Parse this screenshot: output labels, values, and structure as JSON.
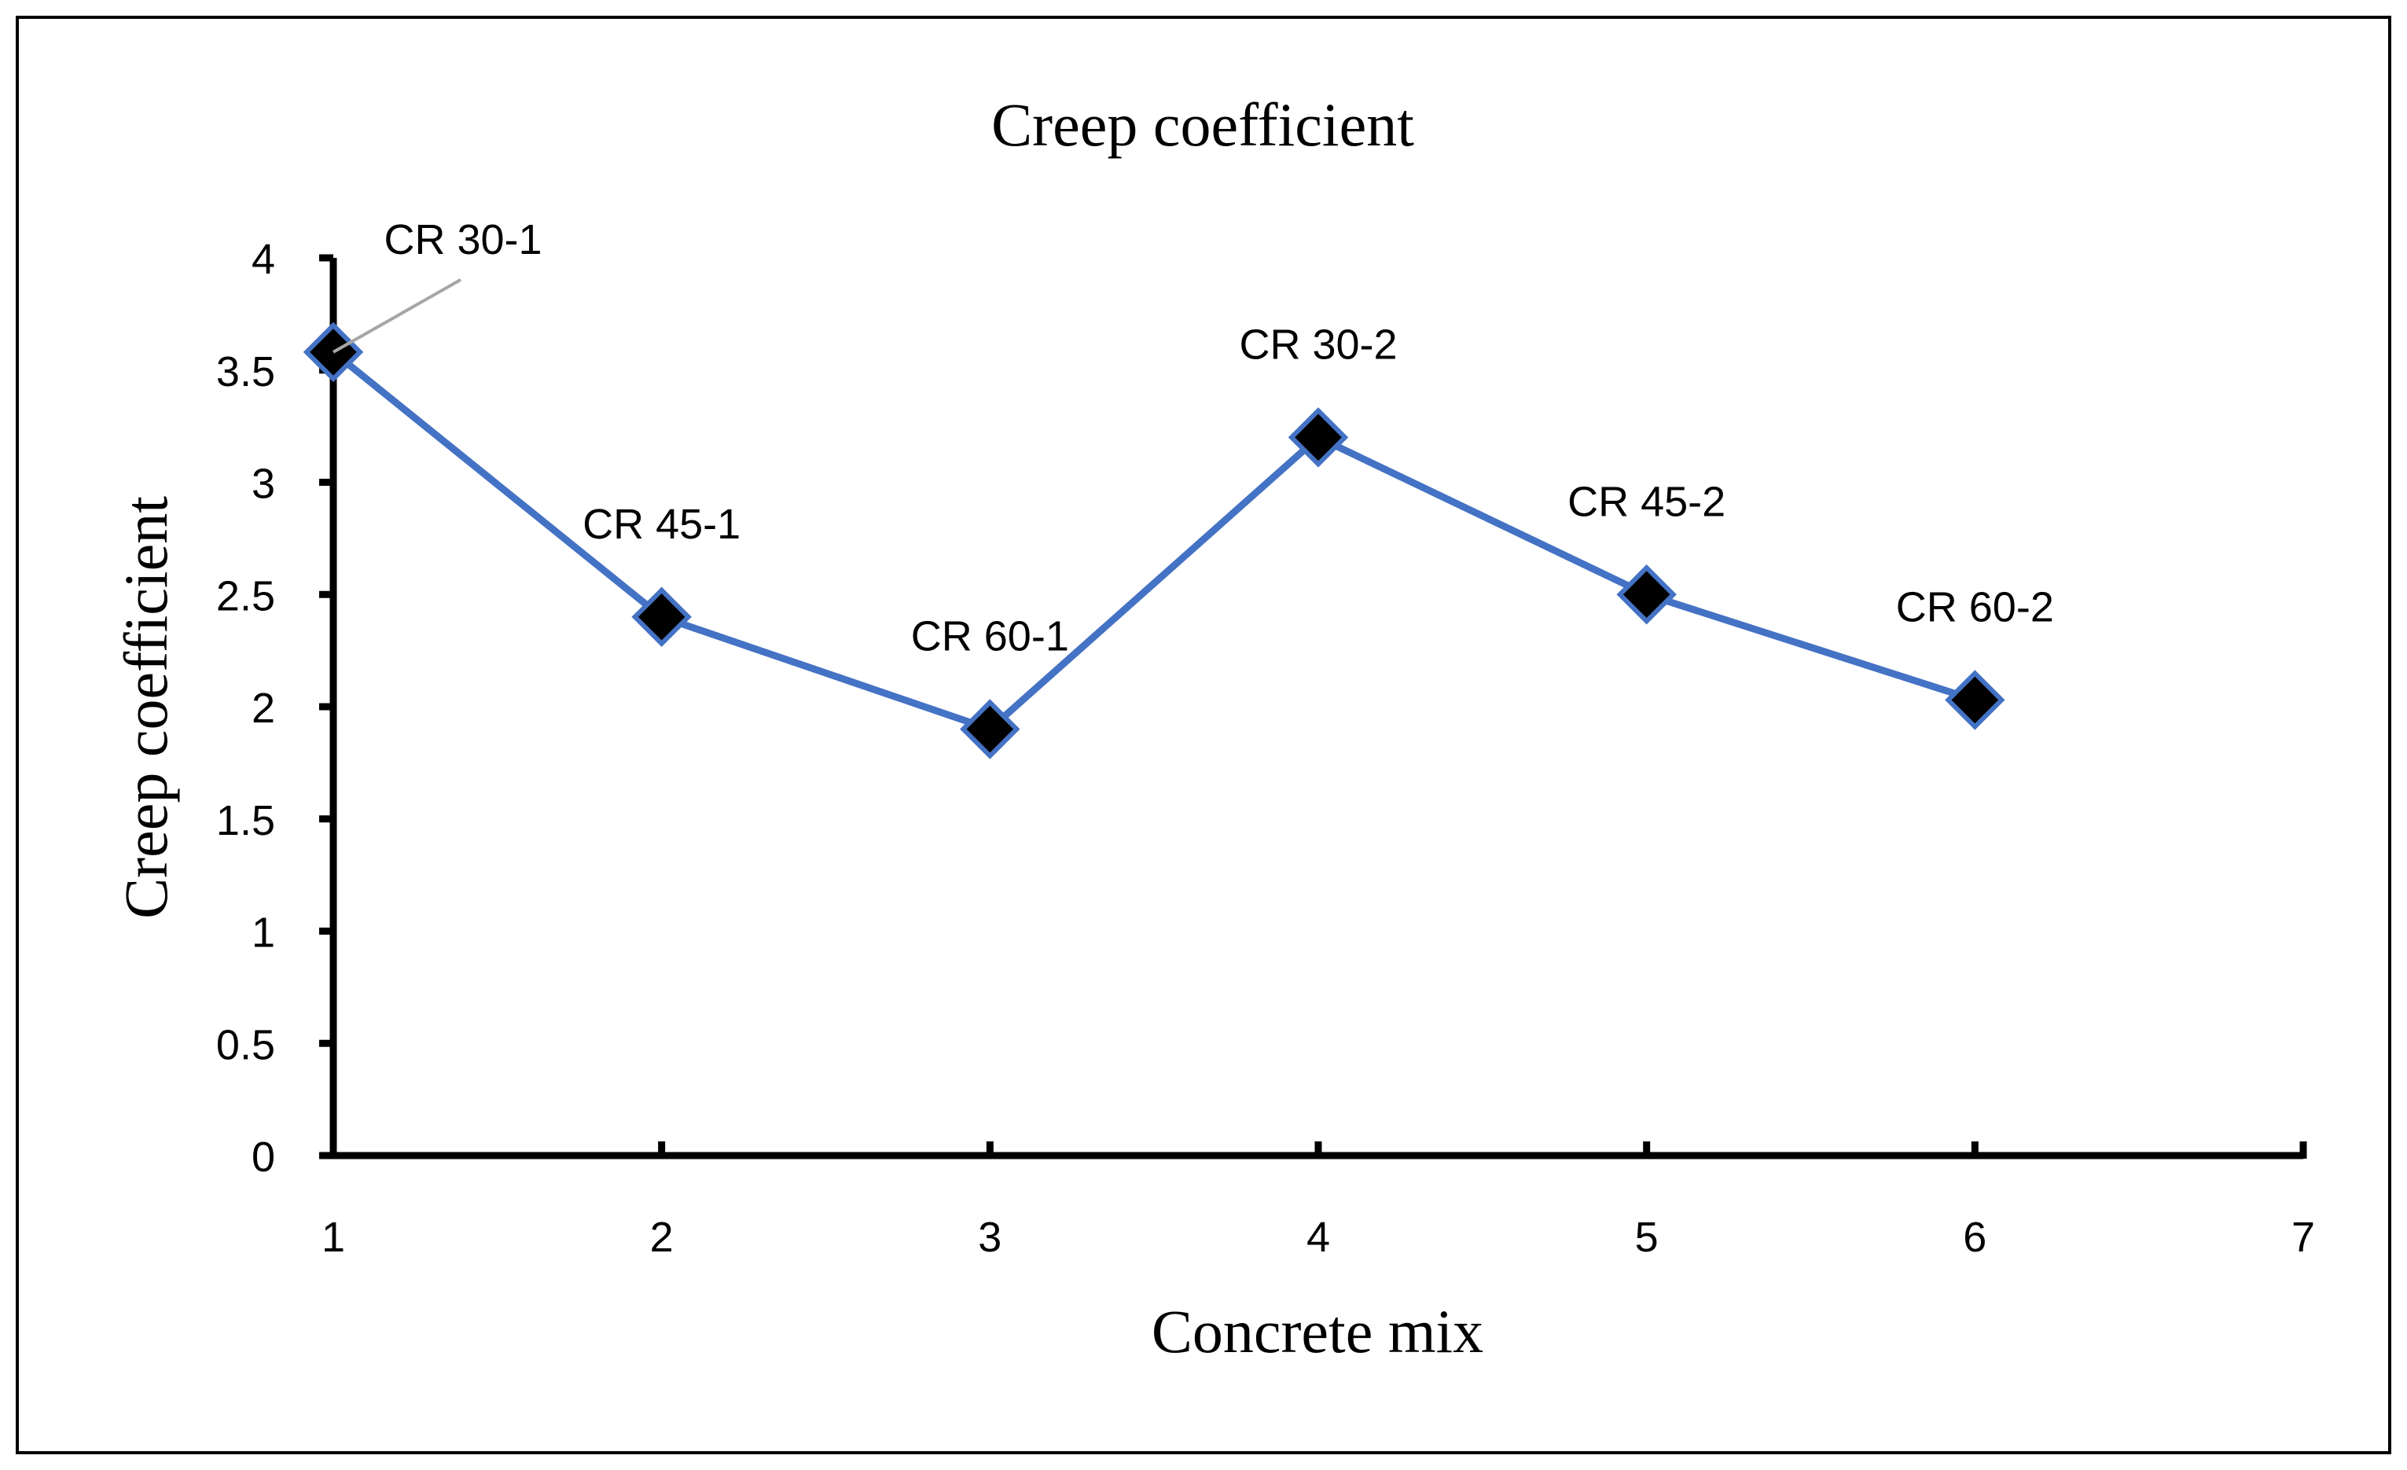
{
  "chart_data": {
    "type": "line",
    "title": "Creep coefficient",
    "xlabel": "Concrete mix",
    "ylabel": "Creep coefficient",
    "xlim": [
      1,
      7
    ],
    "ylim": [
      0,
      4
    ],
    "x_ticks": [
      "1",
      "2",
      "3",
      "4",
      "5",
      "6",
      "7"
    ],
    "y_ticks": [
      "0",
      "0.5",
      "1",
      "1.5",
      "2",
      "2.5",
      "3",
      "3.5",
      "4"
    ],
    "grid": false,
    "legend": "none",
    "series": [
      {
        "name": "Creep coefficient",
        "color": "#4472C4",
        "marker_color": "#000000",
        "points": [
          {
            "x": 1,
            "y": 3.58,
            "label": "CR 30-1"
          },
          {
            "x": 2,
            "y": 2.4,
            "label": "CR 45-1"
          },
          {
            "x": 3,
            "y": 1.9,
            "label": "CR 60-1"
          },
          {
            "x": 4,
            "y": 3.2,
            "label": "CR 30-2"
          },
          {
            "x": 5,
            "y": 2.5,
            "label": "CR 45-2"
          },
          {
            "x": 6,
            "y": 2.03,
            "label": "CR 60-2"
          }
        ]
      }
    ]
  }
}
